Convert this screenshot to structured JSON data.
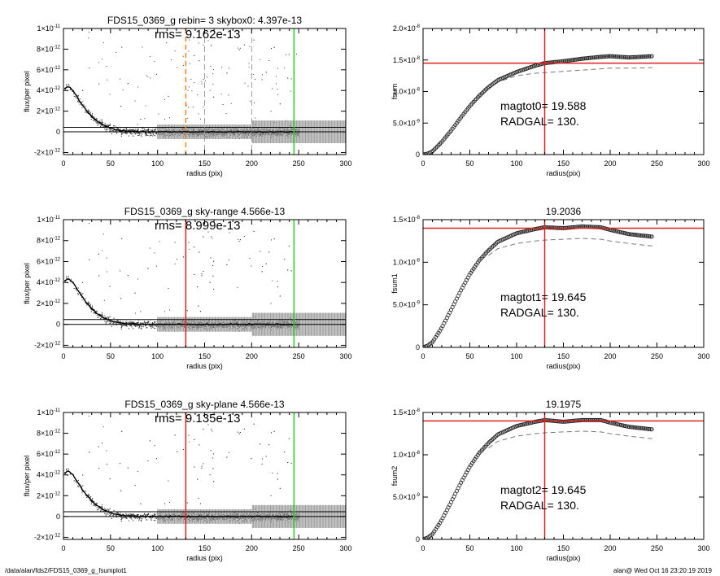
{
  "footer": {
    "left": "/data/alan/fds2/FDS15_0369_g_fsumplot1",
    "right": "alan@  Wed Oct 16 23:20:19 2019"
  },
  "colors": {
    "axis": "#000000",
    "scatter": "#333333",
    "scatter_errorbars": "#9a9a9a",
    "profile": "#000000",
    "radius_marker_red": "#e0201d",
    "radius_marker_orange": "#f08020",
    "outer_marker_green": "#22d022",
    "dashed": "#777777",
    "curve_points": "#222222"
  },
  "chart_data": [
    {
      "id": "profile-1",
      "type": "scatter",
      "title": "FDS15_0369_g rebin= 3    skybox0:  4.397e-13",
      "annotations": [
        "rms= 9.162e-13"
      ],
      "xlabel": "radius (pix)",
      "ylabel": "flux/per pixel",
      "xlim": [
        0,
        300
      ],
      "ylim": [
        -2.2e-12,
        1e-11
      ],
      "xticks": [
        "0",
        "50",
        "100",
        "150",
        "200",
        "250",
        "300"
      ],
      "yticks": [
        {
          "v": -2e-12,
          "m": "-2",
          "e": "-12"
        },
        {
          "v": 0,
          "m": "0",
          "e": ""
        },
        {
          "v": 2e-12,
          "m": "2",
          "e": "-12"
        },
        {
          "v": 4e-12,
          "m": "4",
          "e": "-12"
        },
        {
          "v": 6e-12,
          "m": "6",
          "e": "-12"
        },
        {
          "v": 8e-12,
          "m": "8",
          "e": "-12"
        },
        {
          "v": 1e-11,
          "m": "1",
          "e": "-11",
          "prefix": true
        }
      ],
      "hlines": [
        0,
        4.4e-13
      ],
      "vlines": [
        {
          "x": 130,
          "color": "orange",
          "style": "dashed"
        },
        {
          "x": 150,
          "color": "gray",
          "style": "dashed"
        },
        {
          "x": 200,
          "color": "gray",
          "style": "dashed"
        },
        {
          "x": 245,
          "color": "green",
          "style": "solid"
        }
      ],
      "mean_profile": {
        "x": [
          2,
          5,
          10,
          15,
          20,
          25,
          30,
          35,
          40,
          45,
          50,
          55,
          60,
          70,
          80,
          100,
          130,
          160,
          200,
          245
        ],
        "y": [
          4.2e-12,
          4.4e-12,
          4e-12,
          3.3e-12,
          2.6e-12,
          2e-12,
          1.5e-12,
          1.1e-12,
          8e-13,
          5.5e-13,
          3.5e-13,
          2.2e-13,
          1.3e-13,
          5e-14,
          2e-14,
          0,
          0,
          0,
          0,
          0
        ]
      }
    },
    {
      "id": "curve-1",
      "type": "scatter",
      "title": "",
      "annotations": [
        "magtot0=  19.588",
        "RADGAL=     130."
      ],
      "xlabel": "radius(pix)",
      "ylabel": "fsum",
      "xlim": [
        0,
        300
      ],
      "ylim": [
        0,
        2e-08
      ],
      "xticks": [
        "0",
        "50",
        "100",
        "150",
        "200",
        "250",
        "300"
      ],
      "yticks": [
        {
          "v": 0,
          "m": "0",
          "e": ""
        },
        {
          "v": 5e-09,
          "m": "5.0",
          "e": "-9"
        },
        {
          "v": 1e-08,
          "m": "1.0",
          "e": "-8"
        },
        {
          "v": 1.5e-08,
          "m": "1.5",
          "e": "-8"
        },
        {
          "v": 2e-08,
          "m": "2.0",
          "e": "-8"
        }
      ],
      "hline": 1.45e-08,
      "vline": 130,
      "curve": {
        "x": [
          0,
          5,
          10,
          20,
          30,
          40,
          50,
          60,
          70,
          80,
          100,
          120,
          130,
          150,
          170,
          190,
          200,
          220,
          245
        ],
        "y": [
          0,
          1.5e-10,
          5e-10,
          2e-09,
          3.8e-09,
          5.8e-09,
          7.7e-09,
          9.3e-09,
          1.07e-08,
          1.18e-08,
          1.31e-08,
          1.41e-08,
          1.45e-08,
          1.48e-08,
          1.52e-08,
          1.55e-08,
          1.56e-08,
          1.54e-08,
          1.56e-08
        ]
      },
      "dashed": {
        "x": [
          70,
          80,
          100,
          120,
          130,
          150,
          170,
          190,
          200,
          220,
          245
        ],
        "y": [
          1.05e-08,
          1.15e-08,
          1.25e-08,
          1.29e-08,
          1.3e-08,
          1.32e-08,
          1.34e-08,
          1.36e-08,
          1.37e-08,
          1.37e-08,
          1.38e-08
        ]
      }
    },
    {
      "id": "profile-2",
      "type": "scatter",
      "title": "FDS15_0369_g sky-range  4.566e-13",
      "annotations": [
        "rms= 8.999e-13"
      ],
      "xlabel": "radius (pix)",
      "ylabel": "flux/per pixel",
      "xlim": [
        0,
        300
      ],
      "ylim": [
        -2.2e-12,
        1e-11
      ],
      "xticks": [
        "0",
        "50",
        "100",
        "150",
        "200",
        "250",
        "300"
      ],
      "yticks": [
        {
          "v": -2e-12,
          "m": "-2",
          "e": "-12"
        },
        {
          "v": 0,
          "m": "0",
          "e": ""
        },
        {
          "v": 2e-12,
          "m": "2",
          "e": "-12"
        },
        {
          "v": 4e-12,
          "m": "4",
          "e": "-12"
        },
        {
          "v": 6e-12,
          "m": "6",
          "e": "-12"
        },
        {
          "v": 8e-12,
          "m": "8",
          "e": "-12"
        },
        {
          "v": 1e-11,
          "m": "1",
          "e": "-11",
          "prefix": true
        }
      ],
      "hlines": [
        0,
        4.6e-13
      ],
      "vlines": [
        {
          "x": 130,
          "color": "red",
          "style": "solid"
        },
        {
          "x": 245,
          "color": "green",
          "style": "solid"
        }
      ],
      "mean_profile": {
        "x": [
          2,
          5,
          10,
          15,
          20,
          25,
          30,
          35,
          40,
          45,
          50,
          55,
          60,
          70,
          80,
          100,
          130,
          160,
          200,
          245
        ],
        "y": [
          4.2e-12,
          4.4e-12,
          4e-12,
          3.3e-12,
          2.6e-12,
          2e-12,
          1.5e-12,
          1.1e-12,
          8e-13,
          5.5e-13,
          3.5e-13,
          2.2e-13,
          1.3e-13,
          5e-14,
          2e-14,
          0,
          0,
          0,
          0,
          0
        ]
      }
    },
    {
      "id": "curve-2",
      "type": "scatter",
      "title": "19.2036",
      "annotations": [
        "magtot1=  19.645",
        "RADGAL=     130."
      ],
      "xlabel": "radius(pix)",
      "ylabel": "fsum1",
      "xlim": [
        0,
        300
      ],
      "ylim": [
        0,
        1.5e-08
      ],
      "xticks": [
        "0",
        "50",
        "100",
        "150",
        "200",
        "250",
        "300"
      ],
      "yticks": [
        {
          "v": 0,
          "m": "0",
          "e": ""
        },
        {
          "v": 5e-09,
          "m": "5.0",
          "e": "-9"
        },
        {
          "v": 1e-08,
          "m": "1.0",
          "e": "-8"
        },
        {
          "v": 1.5e-08,
          "m": "1.5",
          "e": "-8"
        }
      ],
      "hline": 1.4e-08,
      "vline": 130,
      "curve": {
        "x": [
          0,
          5,
          10,
          20,
          30,
          40,
          50,
          60,
          70,
          80,
          100,
          120,
          130,
          150,
          170,
          190,
          200,
          220,
          245
        ],
        "y": [
          0,
          2e-10,
          6e-10,
          2.3e-09,
          4.4e-09,
          6.6e-09,
          8.6e-09,
          1.02e-08,
          1.14e-08,
          1.24e-08,
          1.34e-08,
          1.39e-08,
          1.41e-08,
          1.4e-08,
          1.42e-08,
          1.41e-08,
          1.38e-08,
          1.33e-08,
          1.3e-08
        ]
      },
      "dashed": {
        "x": [
          70,
          80,
          100,
          120,
          130,
          150,
          170,
          190,
          200,
          220,
          245
        ],
        "y": [
          1.08e-08,
          1.16e-08,
          1.22e-08,
          1.25e-08,
          1.26e-08,
          1.27e-08,
          1.28e-08,
          1.27e-08,
          1.25e-08,
          1.22e-08,
          1.19e-08
        ]
      }
    },
    {
      "id": "profile-3",
      "type": "scatter",
      "title": "FDS15_0369_g sky-plane  4.566e-13",
      "annotations": [
        "rms= 9.135e-13"
      ],
      "xlabel": "radius (pix)",
      "ylabel": "flux/per pixel",
      "xlim": [
        0,
        300
      ],
      "ylim": [
        -2.2e-12,
        1e-11
      ],
      "xticks": [
        "0",
        "50",
        "100",
        "150",
        "200",
        "250",
        "300"
      ],
      "yticks": [
        {
          "v": -2e-12,
          "m": "-2",
          "e": "-12"
        },
        {
          "v": 0,
          "m": "0",
          "e": ""
        },
        {
          "v": 2e-12,
          "m": "2",
          "e": "-12"
        },
        {
          "v": 4e-12,
          "m": "4",
          "e": "-12"
        },
        {
          "v": 6e-12,
          "m": "6",
          "e": "-12"
        },
        {
          "v": 8e-12,
          "m": "8",
          "e": "-12"
        },
        {
          "v": 1e-11,
          "m": "1",
          "e": "-11",
          "prefix": true
        }
      ],
      "hlines": [
        0,
        4.6e-13
      ],
      "vlines": [
        {
          "x": 130,
          "color": "red",
          "style": "solid"
        },
        {
          "x": 245,
          "color": "green",
          "style": "solid"
        }
      ],
      "mean_profile": {
        "x": [
          2,
          5,
          10,
          15,
          20,
          25,
          30,
          35,
          40,
          45,
          50,
          55,
          60,
          70,
          80,
          100,
          130,
          160,
          200,
          245
        ],
        "y": [
          4.2e-12,
          4.4e-12,
          4e-12,
          3.3e-12,
          2.6e-12,
          2e-12,
          1.5e-12,
          1.1e-12,
          8e-13,
          5.5e-13,
          3.5e-13,
          2.2e-13,
          1.3e-13,
          5e-14,
          2e-14,
          0,
          0,
          0,
          0,
          0
        ]
      }
    },
    {
      "id": "curve-3",
      "type": "scatter",
      "title": "19.1975",
      "annotations": [
        "magtot2=  19.645",
        "RADGAL=     130."
      ],
      "xlabel": "radius(pix)",
      "ylabel": "fsum2",
      "xlim": [
        0,
        300
      ],
      "ylim": [
        0,
        1.5e-08
      ],
      "xticks": [
        "0",
        "50",
        "100",
        "150",
        "200",
        "250",
        "300"
      ],
      "yticks": [
        {
          "v": 0,
          "m": "0",
          "e": ""
        },
        {
          "v": 5e-09,
          "m": "5.0",
          "e": "-9"
        },
        {
          "v": 1e-08,
          "m": "1.0",
          "e": "-8"
        },
        {
          "v": 1.5e-08,
          "m": "1.5",
          "e": "-8"
        }
      ],
      "hline": 1.4e-08,
      "vline": 130,
      "curve": {
        "x": [
          0,
          5,
          10,
          20,
          30,
          40,
          50,
          60,
          70,
          80,
          100,
          120,
          130,
          150,
          170,
          190,
          200,
          220,
          245
        ],
        "y": [
          0,
          2e-10,
          6e-10,
          2.3e-09,
          4.4e-09,
          6.6e-09,
          8.6e-09,
          1.02e-08,
          1.14e-08,
          1.24e-08,
          1.34e-08,
          1.39e-08,
          1.41e-08,
          1.39e-08,
          1.41e-08,
          1.41e-08,
          1.38e-08,
          1.33e-08,
          1.3e-08
        ]
      },
      "dashed": {
        "x": [
          70,
          80,
          100,
          120,
          130,
          150,
          170,
          190,
          200,
          220,
          245
        ],
        "y": [
          1.08e-08,
          1.16e-08,
          1.22e-08,
          1.25e-08,
          1.26e-08,
          1.27e-08,
          1.28e-08,
          1.27e-08,
          1.25e-08,
          1.22e-08,
          1.19e-08
        ]
      }
    }
  ]
}
